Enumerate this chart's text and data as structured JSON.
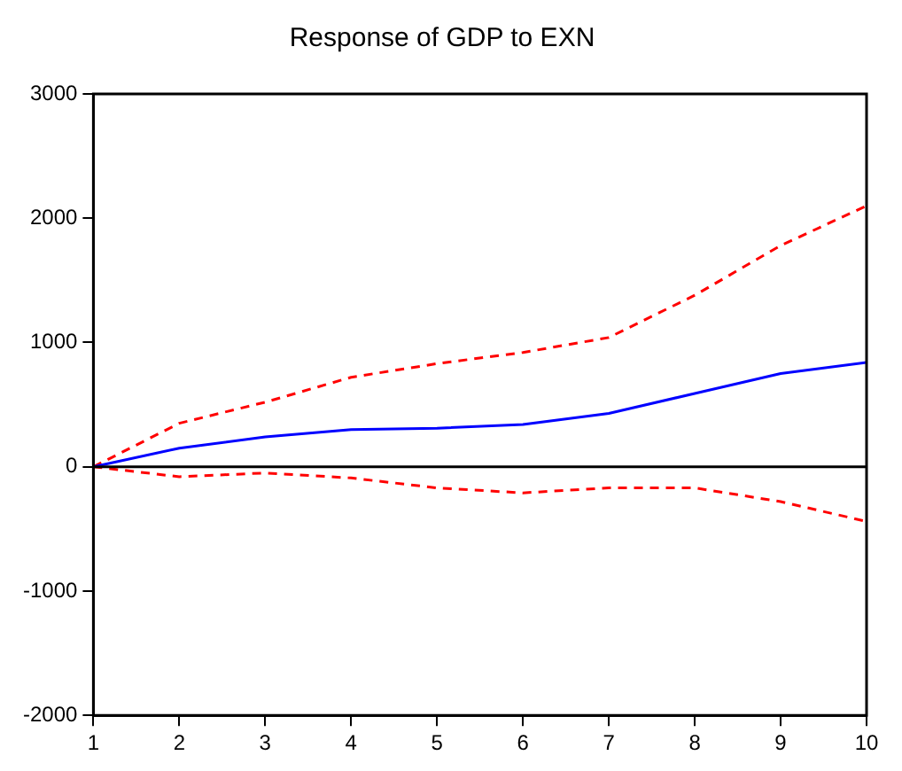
{
  "chart_data": {
    "type": "line",
    "title": "Response of GDP to EXN",
    "x": [
      1,
      2,
      3,
      4,
      5,
      6,
      7,
      8,
      9,
      10
    ],
    "series": [
      {
        "color": "#0000ff",
        "values": [
          0,
          150,
          240,
          300,
          310,
          340,
          430,
          590,
          750,
          840
        ],
        "line_style": "solid"
      },
      {
        "color": "#ff0000",
        "values": [
          0,
          350,
          520,
          720,
          830,
          920,
          1040,
          1380,
          1780,
          2100
        ],
        "line_style": "dashed"
      },
      {
        "color": "#ff0000",
        "values": [
          0,
          -80,
          -50,
          -90,
          -170,
          -210,
          -170,
          -170,
          -280,
          -440
        ],
        "line_style": "dashed"
      }
    ],
    "xlim": [
      1,
      10
    ],
    "xticks": [
      1,
      2,
      3,
      4,
      5,
      6,
      7,
      8,
      9,
      10
    ],
    "ylim": [
      -2000,
      3000
    ],
    "yticks": [
      -2000,
      -1000,
      0,
      1000,
      2000,
      3000
    ],
    "ref_lines": [
      {
        "axis": "y",
        "value": 0,
        "color": "#000000"
      }
    ],
    "grid": false,
    "legend": false,
    "marker": "none"
  }
}
